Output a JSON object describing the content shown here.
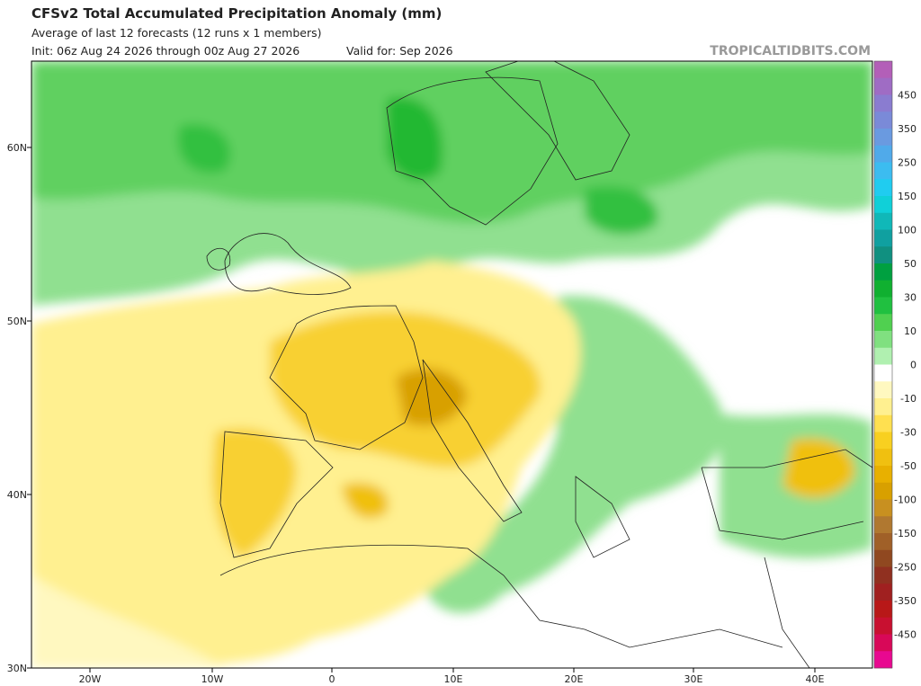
{
  "header": {
    "title": "CFSv2 Total Accumulated Precipitation Anomaly (mm)",
    "subtitle": "Average of last 12 forecasts (12 runs x 1 members)",
    "init": "Init: 06z Aug 24 2026 through 00z Aug 27 2026",
    "valid": "Valid for: Sep 2026",
    "watermark": "TROPICALTIDBITS.COM"
  },
  "map": {
    "lat_labels": [
      "60N",
      "50N",
      "40N",
      "30N"
    ],
    "lon_labels": [
      "20W",
      "10W",
      "0",
      "10E",
      "20E",
      "30E",
      "40E"
    ]
  },
  "colorbar": {
    "labels": [
      "450",
      "350",
      "250",
      "150",
      "100",
      "50",
      "30",
      "10",
      "0",
      "-10",
      "-30",
      "-50",
      "-100",
      "-150",
      "-250",
      "-350",
      "-450"
    ],
    "colors": [
      "#b35fb8",
      "#9f6cc4",
      "#8a7cd0",
      "#7a8ad8",
      "#6a9ae0",
      "#50aaea",
      "#3cbcf0",
      "#20ccf0",
      "#10d0d8",
      "#10b8b8",
      "#10a0a0",
      "#109080",
      "#00a040",
      "#10b030",
      "#20c040",
      "#50d050",
      "#80e080",
      "#b0f0b0",
      "#ffffff",
      "#fff8c0",
      "#fff090",
      "#ffe050",
      "#f8d020",
      "#f0c010",
      "#e8b000",
      "#d8a000",
      "#c89020",
      "#b07830",
      "#a06028",
      "#904820",
      "#903020",
      "#a02020",
      "#b81818",
      "#c81030",
      "#d80858",
      "#e80890"
    ]
  }
}
